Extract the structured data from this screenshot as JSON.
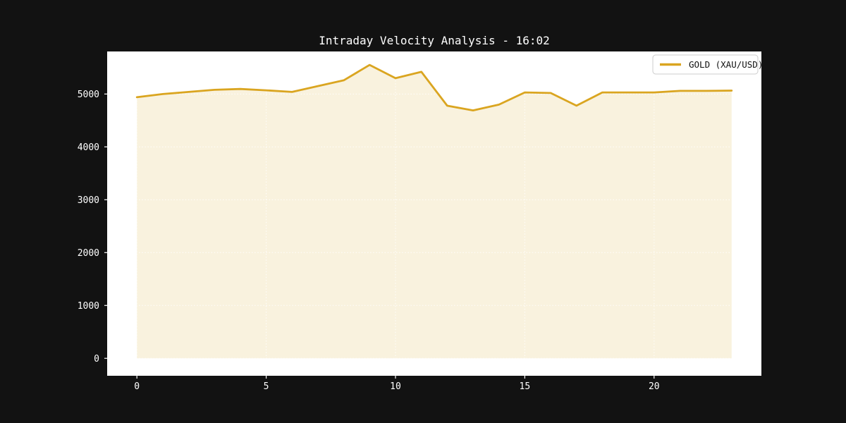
{
  "figure": {
    "background_color": "#121212",
    "plot_background_color": "#ffffff",
    "text_color": "#ffffff"
  },
  "chart_data": {
    "type": "area",
    "title": "Intraday Velocity Analysis - 16:02",
    "xlabel": "",
    "ylabel": "",
    "grid": "dotted white, visible over fill only",
    "legend_position": "upper right",
    "xlim": [
      -1.15,
      24.15
    ],
    "ylim": [
      -330,
      5805
    ],
    "xticks": [
      "0",
      "5",
      "10",
      "15",
      "20"
    ],
    "xtick_values": [
      0,
      5,
      10,
      15,
      20
    ],
    "yticks": [
      "0",
      "1000",
      "2000",
      "3000",
      "4000",
      "5000"
    ],
    "ytick_values": [
      0,
      1000,
      2000,
      3000,
      4000,
      5000
    ],
    "series": [
      {
        "name": "GOLD (XAU/USD)",
        "color": "#DAA520",
        "fill_opacity": 0.15,
        "line_width": 2.8,
        "x": [
          0,
          1,
          2,
          3,
          4,
          5,
          6,
          7,
          8,
          9,
          10,
          11,
          12,
          13,
          14,
          15,
          16,
          17,
          18,
          19,
          20,
          21,
          22,
          23
        ],
        "values": [
          4940,
          5000,
          5040,
          5080,
          5095,
          5070,
          5040,
          5150,
          5260,
          5550,
          5300,
          5420,
          4780,
          4690,
          4800,
          5030,
          5020,
          4780,
          5030,
          5030,
          5030,
          5060,
          5060,
          5065
        ]
      }
    ]
  },
  "legend": {
    "label": "GOLD (XAU/USD)",
    "background_color": "#ffffff",
    "border_color": "#cccccc",
    "text_color": "#111111",
    "swatch_color": "#DAA520"
  }
}
